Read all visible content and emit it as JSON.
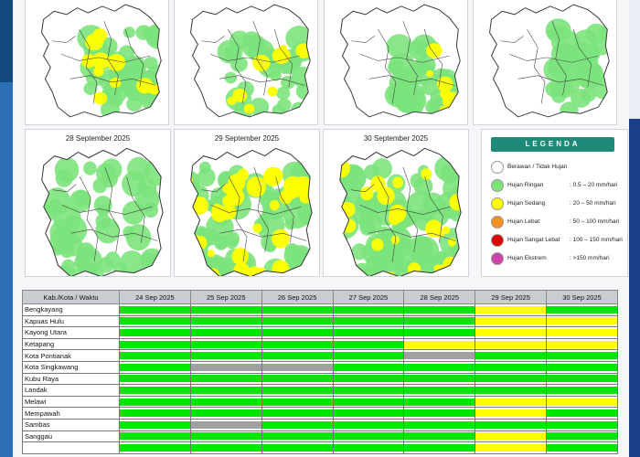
{
  "colors": {
    "green": "#00e600",
    "yellow": "#ffff00",
    "gray": "#a0a0a0",
    "light_green": "#7ce37c",
    "legend_title_bg": "#1f8a7a",
    "side_blue": "#2c6fb4",
    "side_navy": "#1b3f86"
  },
  "maps": {
    "top_row_dates": [
      "",
      "",
      "",
      ""
    ],
    "bottom_row": [
      {
        "date": "28 September 2025"
      },
      {
        "date": "29 September 2025"
      },
      {
        "date": "30 September 2025"
      }
    ]
  },
  "legend": {
    "title": "LEGENDA",
    "items": [
      {
        "label": "Berawan / Tidak Hujan",
        "range": "",
        "color": "#ffffff"
      },
      {
        "label": "Hujan Ringan",
        "range": ": 0.5 – 20 mm/hari",
        "color": "#7ce37c"
      },
      {
        "label": "Hujan Sedang",
        "range": ": 20 – 50 mm/hari",
        "color": "#ffff00"
      },
      {
        "label": "Hujan Lebat",
        "range": ": 50 – 100 mm/hari",
        "color": "#f39020"
      },
      {
        "label": "Hujan Sangat Lebat",
        "range": ": 100 – 150 mm/hari",
        "color": "#e00000"
      },
      {
        "label": "Hujan Ekstrem",
        "range": ": >150 mm/hari",
        "color": "#cc44aa"
      }
    ]
  },
  "table": {
    "headers": [
      "Kab./Kota / Waktu",
      "24 Sep 2025",
      "25 Sep 2025",
      "26 Sep 2025",
      "27 Sep 2025",
      "28 Sep 2025",
      "29 Sep 2025",
      "30 Sep 2025"
    ],
    "rows": [
      {
        "name": "Bengkayang",
        "levels": [
          "G",
          "G",
          "G",
          "G",
          "G",
          "Y",
          "G"
        ]
      },
      {
        "name": "Kapuas Hulu",
        "levels": [
          "G",
          "G",
          "G",
          "G",
          "G",
          "Y",
          "Y"
        ]
      },
      {
        "name": "Kayong Utara",
        "levels": [
          "G",
          "G",
          "G",
          "G",
          "G",
          "Y",
          "Y"
        ]
      },
      {
        "name": "Ketapang",
        "levels": [
          "G",
          "G",
          "G",
          "G",
          "Y",
          "Y",
          "Y"
        ]
      },
      {
        "name": "Kota Pontianak",
        "levels": [
          "G",
          "G",
          "G",
          "G",
          "N",
          "G",
          "G"
        ]
      },
      {
        "name": "Kota Singkawang",
        "levels": [
          "G",
          "N",
          "N",
          "G",
          "G",
          "G",
          "G"
        ]
      },
      {
        "name": "Kubu Raya",
        "levels": [
          "G",
          "G",
          "G",
          "G",
          "G",
          "G",
          "G"
        ]
      },
      {
        "name": "Landak",
        "levels": [
          "G",
          "G",
          "G",
          "G",
          "G",
          "G",
          "G"
        ]
      },
      {
        "name": "Melawi",
        "levels": [
          "G",
          "G",
          "G",
          "G",
          "G",
          "Y",
          "Y"
        ]
      },
      {
        "name": "Mempawah",
        "levels": [
          "G",
          "G",
          "G",
          "G",
          "G",
          "Y",
          "G"
        ]
      },
      {
        "name": "Sambas",
        "levels": [
          "G",
          "N",
          "G",
          "G",
          "G",
          "G",
          "G"
        ]
      },
      {
        "name": "Sanggau",
        "levels": [
          "G",
          "G",
          "G",
          "G",
          "G",
          "Y",
          "G"
        ]
      },
      {
        "name": "",
        "levels": [
          "G",
          "G",
          "G",
          "G",
          "G",
          "Y",
          "G"
        ]
      }
    ]
  }
}
